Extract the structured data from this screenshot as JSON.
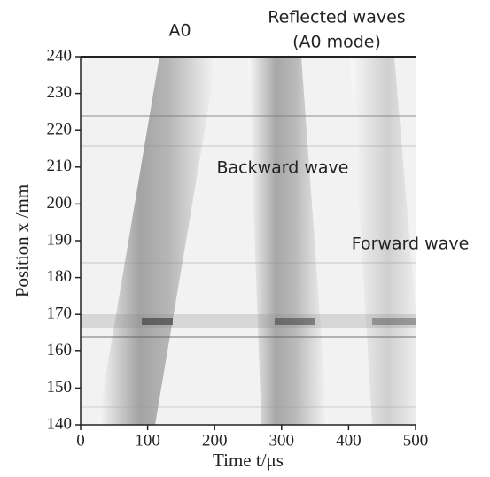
{
  "chart_data": {
    "type": "image",
    "xlabel": "Time t/μs",
    "ylabel": "Position x /mm",
    "xlim": [
      0,
      500
    ],
    "ylim": [
      140,
      240
    ],
    "xticks": [
      0,
      100,
      200,
      300,
      400,
      500
    ],
    "yticks": [
      140,
      150,
      160,
      170,
      180,
      190,
      200,
      210,
      220,
      230,
      240
    ],
    "annotations": [
      "A0",
      "Reflected waves",
      "(A0 mode)",
      "Backward wave",
      "Forward wave"
    ]
  }
}
